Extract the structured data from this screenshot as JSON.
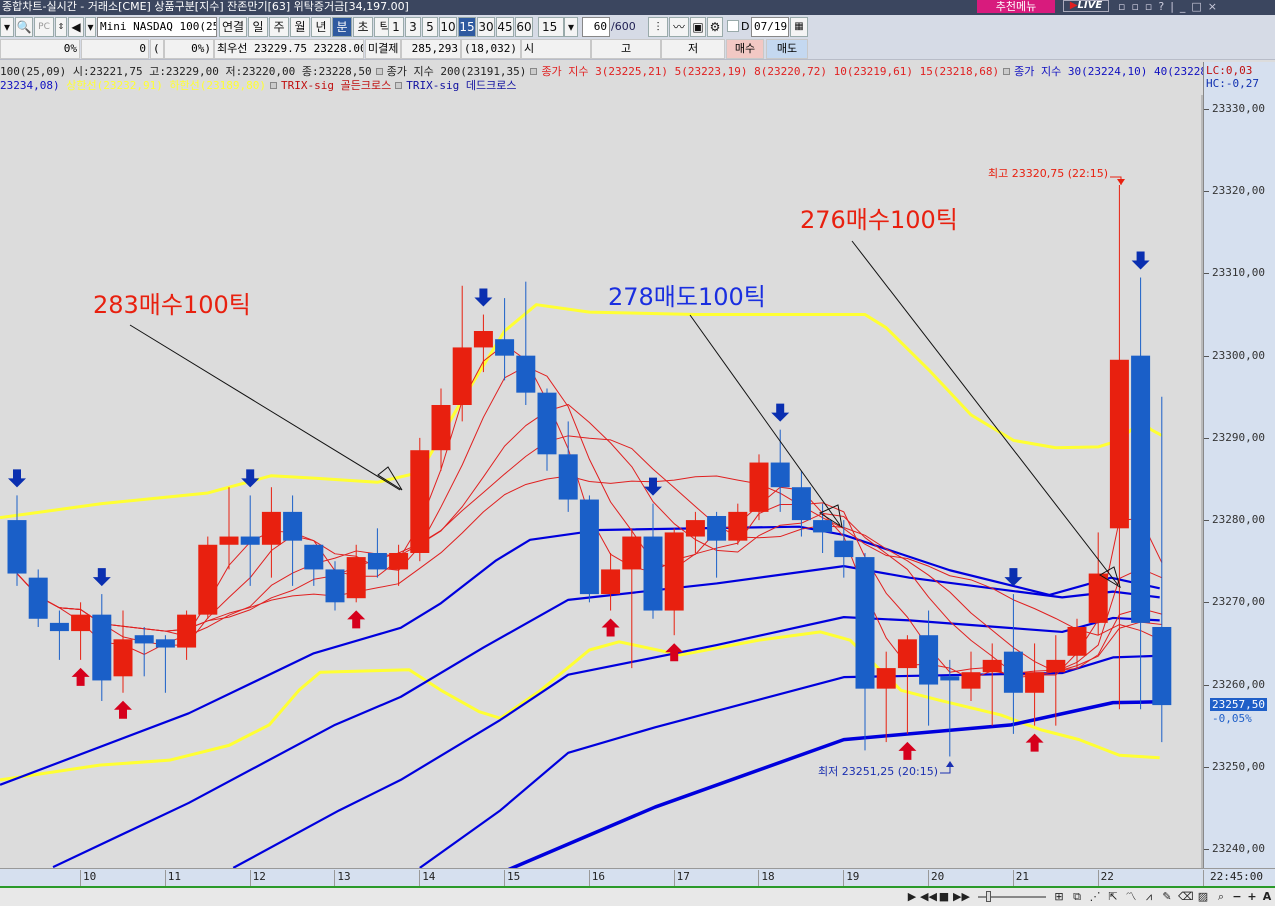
{
  "window": {
    "title": "종합차트-실시간 - 거래소[CME] 상품구분[지수] 잔존만기[63] 위탁증거금[34,197.00]",
    "recommend": "추천메뉴",
    "live": "LIVE"
  },
  "toolbar": {
    "symbol": "Mini NASDAQ 100(25.0",
    "period_buttons": [
      "연결",
      "일",
      "주",
      "월",
      "년",
      "분",
      "초",
      "틱"
    ],
    "selected_period": "분",
    "interval_buttons": [
      "1",
      "3",
      "5",
      "10",
      "15",
      "30",
      "45",
      "60"
    ],
    "selected_interval": "15",
    "interval_select": "15",
    "count": "60",
    "count_max": "/600",
    "d_label": "D",
    "date": "07/19"
  },
  "quote": {
    "pct1": "0%",
    "val": "0",
    "paren_open": "(",
    "pct2": "0%)",
    "best": "최우선 23229.75  23228.00",
    "oi_label": "미결제",
    "oi": "285,293",
    "oi_change": "(18,032)",
    "open_label": "시",
    "high_label": "고",
    "low_label": "저",
    "buy": "매수",
    "sell": "매도"
  },
  "legend": {
    "ohlc": "100(25,09) 시:23221,75 고:23229,00 저:23220,00 종:23228,50",
    "ma200": "종가 지수 200(23191,35)",
    "ma_red": "종가 지수 3(23225,21)  5(23223,19)  8(23220,72)  10(23219,61)  15(23218,68)",
    "ma_blue": "종가 지수 30(23224,10)  40(23228,72)  50(23232,07)",
    "ma_blue_cont": "23234,08)",
    "bands": "상한선(23232,91)  하한선(23189,80)",
    "trix_golden": "TRIX-sig 골든크로스",
    "trix_dead": "TRIX-sig 데드크로스",
    "lc": "LC:0,03",
    "hc": "HC:-0,27"
  },
  "colors": {
    "up": "#e8200f",
    "down": "#1a5fc8",
    "band": "#ffff33",
    "ma_blue": "#0000dd",
    "ma_red": "#e02020",
    "buy_arrow": "#d6001c",
    "sell_arrow": "#0a2fb0"
  },
  "chart_data": {
    "type": "candlestick",
    "interval": "15분",
    "ylim": [
      23237.7,
      23335
    ],
    "yticks": [
      "23330,00",
      "23320,00",
      "23310,00",
      "23300,00",
      "23290,00",
      "23280,00",
      "23270,00",
      "23260,00",
      "23250,00",
      "23240,00"
    ],
    "ytick_values": [
      23330,
      23320,
      23310,
      23300,
      23290,
      23280,
      23270,
      23260,
      23250,
      23240
    ],
    "xticks": [
      "10",
      "11",
      "12",
      "13",
      "14",
      "15",
      "16",
      "17",
      "18",
      "19",
      "20",
      "21",
      "22"
    ],
    "last_time": "22:45:00",
    "current_price": "23257,50",
    "current_change": "-0,05%",
    "candles": [
      [
        23280,
        23283,
        23272,
        23273.5
      ],
      [
        23273,
        23274,
        23267,
        23268
      ],
      [
        23267.5,
        23269,
        23263,
        23266.5
      ],
      [
        23266.5,
        23270,
        23263,
        23268.5
      ],
      [
        23268.5,
        23271,
        23258,
        23260.5
      ],
      [
        23261,
        23269,
        23259,
        23265.5
      ],
      [
        23266,
        23267,
        23261,
        23265
      ],
      [
        23265.5,
        23266,
        23259,
        23264.5
      ],
      [
        23264.5,
        23269,
        23263,
        23268.5
      ],
      [
        23268.5,
        23278,
        23268,
        23277
      ],
      [
        23277,
        23284,
        23274,
        23278
      ],
      [
        23278,
        23283,
        23272,
        23277
      ],
      [
        23277,
        23284,
        23273,
        23281
      ],
      [
        23281,
        23283,
        23272,
        23277.5
      ],
      [
        23277,
        23277,
        23272,
        23274
      ],
      [
        23274,
        23275,
        23269,
        23270
      ],
      [
        23270.5,
        23277,
        23270,
        23275.5
      ],
      [
        23276,
        23279,
        23273,
        23274
      ],
      [
        23274,
        23277,
        23272,
        23276
      ],
      [
        23276,
        23290,
        23275,
        23288.5
      ],
      [
        23288.5,
        23296,
        23286,
        23294
      ],
      [
        23294,
        23308.5,
        23292,
        23301
      ],
      [
        23301,
        23305,
        23298,
        23303
      ],
      [
        23302,
        23307,
        23297,
        23300
      ],
      [
        23300,
        23309,
        23294,
        23295.5
      ],
      [
        23295.5,
        23296,
        23286,
        23288
      ],
      [
        23288,
        23292,
        23281,
        23282.5
      ],
      [
        23282.5,
        23283,
        23270,
        23271
      ],
      [
        23271,
        23276,
        23269,
        23274
      ],
      [
        23274,
        23279,
        23262,
        23278
      ],
      [
        23278,
        23282,
        23268,
        23269
      ],
      [
        23269,
        23279,
        23266,
        23278.5
      ],
      [
        23278,
        23281,
        23276,
        23280
      ],
      [
        23280.5,
        23281,
        23273,
        23277.5
      ],
      [
        23277.5,
        23282,
        23277,
        23281
      ],
      [
        23281,
        23288,
        23280,
        23287
      ],
      [
        23287,
        23291,
        23281,
        23284
      ],
      [
        23284,
        23286,
        23278,
        23280
      ],
      [
        23280,
        23282,
        23276,
        23278.5
      ],
      [
        23277.5,
        23280,
        23273,
        23275.5
      ],
      [
        23275.5,
        23276,
        23252,
        23259.5
      ],
      [
        23259.5,
        23264,
        23253,
        23262
      ],
      [
        23262,
        23266,
        23254,
        23265.5
      ],
      [
        23266,
        23269,
        23255,
        23260
      ],
      [
        23261,
        23263,
        23251.25,
        23260.5
      ],
      [
        23259.5,
        23264,
        23258,
        23261.5
      ],
      [
        23261.5,
        23265,
        23255,
        23263
      ],
      [
        23264,
        23271,
        23254,
        23259
      ],
      [
        23259,
        23265,
        23255,
        23261.5
      ],
      [
        23261.5,
        23266,
        23255,
        23263
      ],
      [
        23263.5,
        23268,
        23262,
        23267
      ],
      [
        23267.5,
        23278.5,
        23266,
        23273.5
      ],
      [
        23279,
        23320.75,
        23257,
        23299.5
      ],
      [
        23300,
        23309.5,
        23257,
        23267.5
      ],
      [
        23267,
        23295,
        23253,
        23257.5
      ]
    ],
    "band_upper": [
      [
        -0.8,
        23280.3
      ],
      [
        4,
        23282
      ],
      [
        9,
        23283.3
      ],
      [
        12,
        23285.4
      ],
      [
        14,
        23285.1
      ],
      [
        17,
        23284.6
      ],
      [
        19,
        23285.8
      ],
      [
        21,
        23294.6
      ],
      [
        23,
        23303
      ],
      [
        24.5,
        23306.2
      ],
      [
        27,
        23305.3
      ],
      [
        32,
        23305
      ],
      [
        40,
        23305
      ],
      [
        41,
        23303.4
      ],
      [
        43,
        23298.3
      ],
      [
        45,
        23292.8
      ],
      [
        47,
        23289.7
      ],
      [
        49,
        23288.8
      ],
      [
        51,
        23288.9
      ],
      [
        52,
        23289.7
      ],
      [
        53,
        23292
      ],
      [
        53.5,
        23291
      ],
      [
        54,
        23290.3
      ]
    ],
    "band_lower": [
      [
        -0.8,
        23248.4
      ],
      [
        3.9,
        23250.2
      ],
      [
        7.2,
        23250.8
      ],
      [
        10,
        23252.6
      ],
      [
        11.9,
        23255.1
      ],
      [
        13.3,
        23259.3
      ],
      [
        14.3,
        23261.5
      ],
      [
        18.5,
        23261.8
      ],
      [
        20,
        23259.3
      ],
      [
        21.8,
        23256.7
      ],
      [
        22.8,
        23255.9
      ],
      [
        24.7,
        23259.3
      ],
      [
        27,
        23264.2
      ],
      [
        28.4,
        23265.2
      ],
      [
        31.3,
        23263.6
      ],
      [
        35,
        23265.4
      ],
      [
        37.9,
        23266.4
      ],
      [
        39.3,
        23265.4
      ],
      [
        40.7,
        23261.8
      ],
      [
        41.7,
        23259.3
      ],
      [
        43.5,
        23258.1
      ],
      [
        46.4,
        23256.3
      ],
      [
        48.3,
        23254.5
      ],
      [
        50.1,
        23253.3
      ],
      [
        52,
        23251.4
      ],
      [
        53.9,
        23251.1
      ]
    ],
    "ma_blue_lines": [
      [
        [
          -0.8,
          23247.8
        ],
        [
          8.1,
          23256.5
        ],
        [
          14,
          23263.8
        ],
        [
          18.1,
          23266.9
        ],
        [
          20,
          23269.9
        ],
        [
          22.6,
          23275.1
        ],
        [
          24.2,
          23277.6
        ],
        [
          27.5,
          23278.8
        ],
        [
          36.9,
          23279.2
        ],
        [
          39,
          23278.2
        ],
        [
          44,
          23273.9
        ],
        [
          48.7,
          23270.9
        ],
        [
          51.6,
          23273
        ],
        [
          53.9,
          23271.7
        ]
      ],
      [
        [
          1.7,
          23237.8
        ],
        [
          8.1,
          23245.6
        ],
        [
          15,
          23255.1
        ],
        [
          18.1,
          23258.5
        ],
        [
          22,
          23264.5
        ],
        [
          26,
          23270.3
        ],
        [
          33,
          23272.3
        ],
        [
          39,
          23274.4
        ],
        [
          42.1,
          23273
        ],
        [
          49.3,
          23270.6
        ],
        [
          51.7,
          23271.3
        ],
        [
          53.9,
          23270.6
        ]
      ],
      [
        [
          10.2,
          23237.7
        ],
        [
          15.2,
          23244.7
        ],
        [
          18.1,
          23248.4
        ],
        [
          22.8,
          23255.7
        ],
        [
          26,
          23261.2
        ],
        [
          33,
          23264.8
        ],
        [
          39,
          23268.2
        ],
        [
          42.1,
          23267.8
        ],
        [
          49.3,
          23266.4
        ],
        [
          51.7,
          23268.1
        ],
        [
          53.9,
          23267.8
        ]
      ],
      [
        [
          19,
          23237.7
        ],
        [
          22.8,
          23244.7
        ],
        [
          26,
          23251.7
        ],
        [
          30.1,
          23254.8
        ],
        [
          39,
          23260.9
        ],
        [
          49.3,
          23261.4
        ],
        [
          51.7,
          23263.3
        ],
        [
          53.9,
          23263.5
        ]
      ],
      [
        [
          23.1,
          23237.4
        ],
        [
          30.1,
          23245.1
        ],
        [
          39,
          23253.3
        ],
        [
          46.9,
          23255.1
        ],
        [
          51.7,
          23257.8
        ],
        [
          53.9,
          23257.9
        ]
      ]
    ],
    "buy_signals": [
      3,
      5,
      16,
      28,
      31,
      42,
      48
    ],
    "sell_signals": [
      0,
      4,
      11,
      22,
      30,
      36,
      47,
      53
    ],
    "annotations": [
      {
        "text": "283매수100틱",
        "color": "#e8200f"
      },
      {
        "text": "278매도100틱",
        "color": "#1a2fe0"
      },
      {
        "text": "276매수100틱",
        "color": "#e8200f"
      }
    ],
    "high_label": "최고 23320,75 (22:15)",
    "low_label": "최저 23251,25 (20:15)"
  }
}
